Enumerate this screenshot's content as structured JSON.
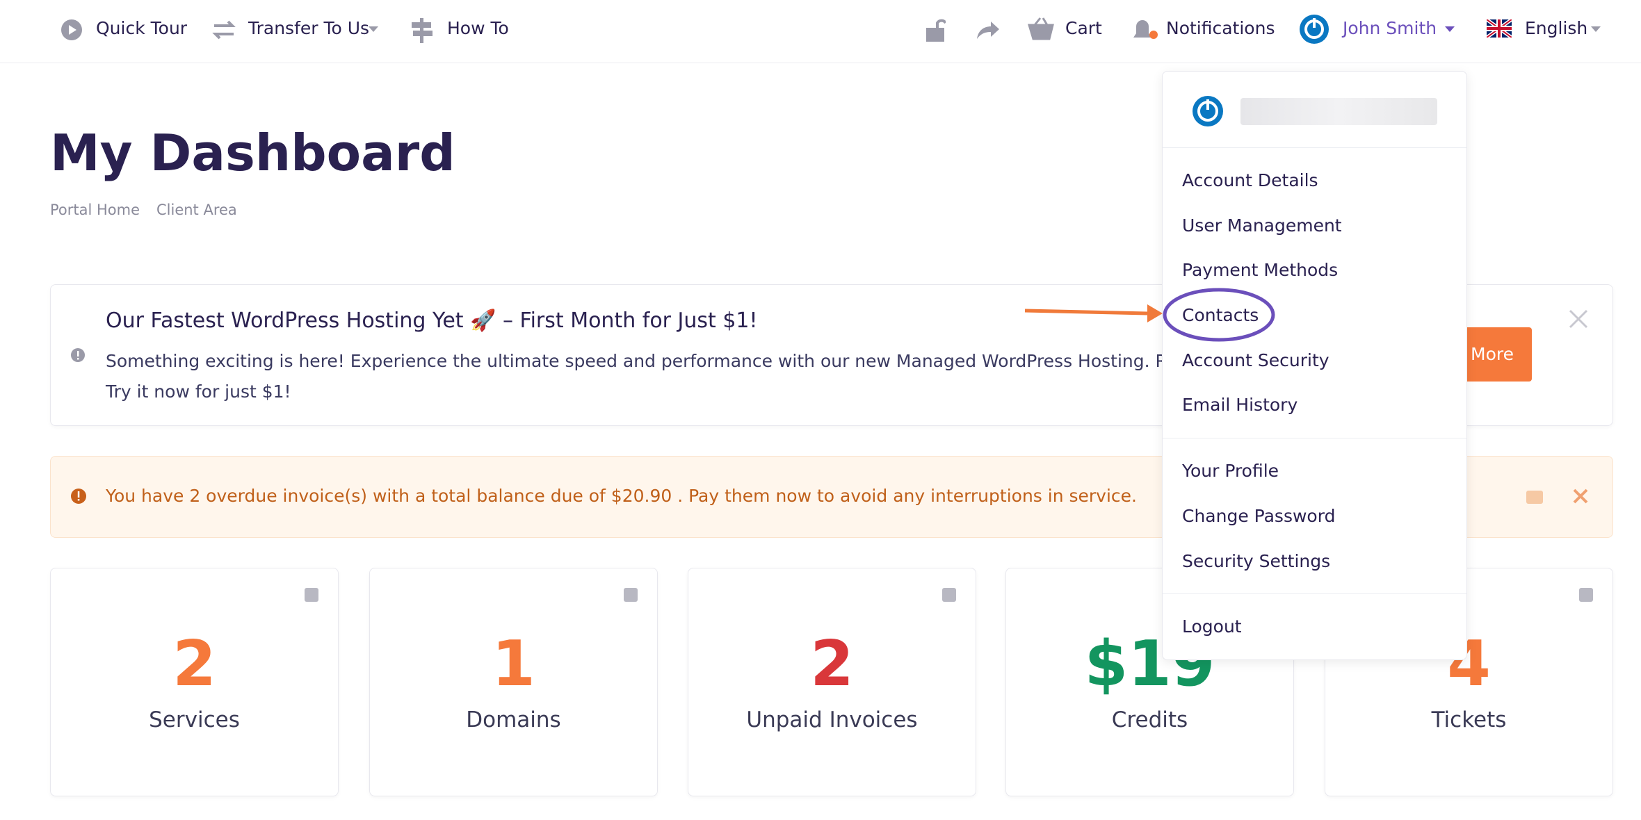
{
  "nav": {
    "left": [
      "Quick Tour",
      "Transfer To Us",
      "How To"
    ],
    "right": [
      "Cart",
      "Notifications",
      "John Smith",
      "English"
    ]
  },
  "page": {
    "title": "My Dashboard",
    "breadcrumb": [
      "Portal Home",
      "Client Area"
    ]
  },
  "banner": {
    "title": "Our Fastest WordPress Hosting Yet 🚀 – First Month for Just $1!",
    "text": [
      "Something exciting is here! Experience the ultimate speed and performance with our new Managed WordPress Hosting. Ready to s",
      "Try it now for just $1!"
    ],
    "button": "More"
  },
  "alert": {
    "text": "You have 2 overdue invoice(s) with a total balance due of $20.90 . Pay them now to avoid any interruptions in service."
  },
  "stats": [
    {
      "value": "2",
      "label": "Services"
    },
    {
      "value": "1",
      "label": "Domains"
    },
    {
      "value": "2",
      "label": "Unpaid Invoices"
    },
    {
      "value": "$19",
      "label": "Credits"
    },
    {
      "value": "4",
      "label": "Tickets"
    }
  ],
  "user_menu": {
    "groups": [
      [
        "Account Details",
        "User Management",
        "Payment Methods",
        "Contacts",
        "Account Security",
        "Email History"
      ],
      [
        "Your Profile",
        "Change Password",
        "Security Settings"
      ],
      [
        "Logout"
      ]
    ]
  }
}
